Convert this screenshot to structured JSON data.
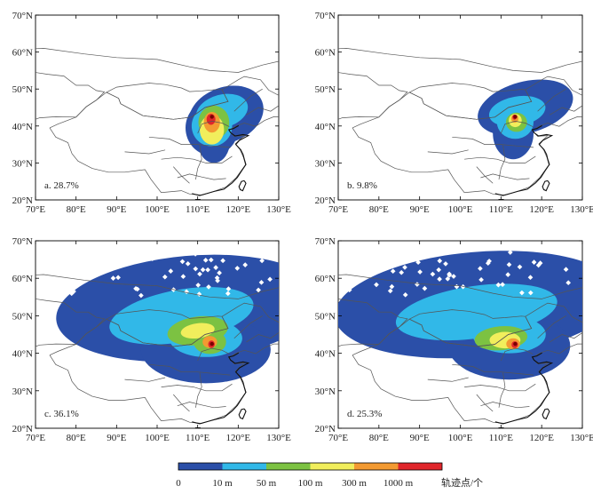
{
  "panels": [
    {
      "label": "a. 28.7%"
    },
    {
      "label": "b. 9.8%"
    },
    {
      "label": "c. 36.1%"
    },
    {
      "label": "d. 25.3%"
    }
  ],
  "axes": {
    "lon_ticks": [
      "70°E",
      "80°E",
      "90°E",
      "100°E",
      "110°E",
      "120°E",
      "130°E"
    ],
    "lat_ticks": [
      "70°N",
      "60°N",
      "50°N",
      "40°N",
      "30°N",
      "20°N"
    ],
    "lon_range": [
      70,
      130
    ],
    "lat_range": [
      20,
      70
    ]
  },
  "colorbar": {
    "labels": [
      "0",
      "10 m",
      "50 m",
      "100 m",
      "300 m",
      "1000 m"
    ],
    "unit": "轨迹点/个",
    "colors": [
      "#2b4fa8",
      "#31b8e8",
      "#7cc242",
      "#f1ee5c",
      "#f39a32",
      "#e0252b"
    ]
  },
  "source_point": {
    "lon": 113.5,
    "lat": 42.5
  }
}
